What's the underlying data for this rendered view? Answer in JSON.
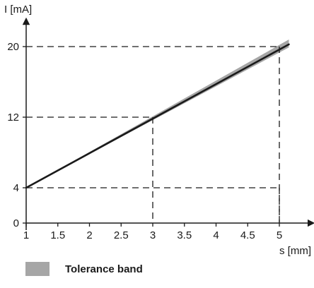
{
  "chart_data": {
    "type": "line",
    "title": "",
    "xlabel": "s [mm]",
    "ylabel": "I [mA]",
    "xlim": [
      1,
      5.2
    ],
    "ylim": [
      0,
      22
    ],
    "x_ticks": [
      "1",
      "1.5",
      "2",
      "2.5",
      "3",
      "3.5",
      "4",
      "4.5",
      "5"
    ],
    "y_ticks": [
      "0",
      "4",
      "12",
      "20"
    ],
    "grid": false,
    "series": [
      {
        "x": [
          1,
          5.15
        ],
        "y": [
          4,
          20.25
        ]
      }
    ],
    "tolerance_band": {
      "x": [
        1,
        5.15
      ],
      "y_lower": [
        4,
        19.9
      ],
      "y_upper": [
        4,
        20.8
      ]
    },
    "reference_lines": [
      {
        "x": 3,
        "y": 12
      },
      {
        "x": 5,
        "y": 20
      },
      {
        "x": 5,
        "y": 4
      }
    ],
    "legend": {
      "position": "bottom-left",
      "entries": [
        {
          "label": "Tolerance band",
          "color": "#a6a6a6"
        }
      ]
    },
    "colors": {
      "line": "#1a1a1a",
      "band": "#a6a6a6",
      "axis": "#1a1a1a",
      "reference": "#1a1a1a"
    }
  }
}
